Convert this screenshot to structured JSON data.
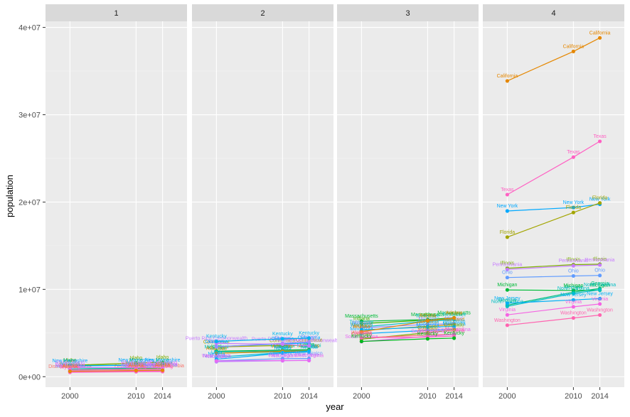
{
  "chart_data": {
    "type": "line",
    "facet_by": "group",
    "facets": [
      {
        "label": "1",
        "series": [
          {
            "name": "Delaware",
            "values": [
              783600,
              897934,
              935614
            ],
            "color": "#a3a500"
          },
          {
            "name": "District of Columbia",
            "values": [
              572059,
              601723,
              658893
            ],
            "color": "#f8766d"
          },
          {
            "name": "Idaho",
            "values": [
              1293953,
              1567582,
              1634464
            ],
            "color": "#7cae00"
          },
          {
            "name": "Maine",
            "values": [
              1274923,
              1328361,
              1330089
            ],
            "color": "#00ba38"
          },
          {
            "name": "Montana",
            "values": [
              902195,
              989415,
              1023579
            ],
            "color": "#00bfc4"
          },
          {
            "name": "New Hampshire",
            "values": [
              1235786,
              1316470,
              1326813
            ],
            "color": "#00a9ff"
          },
          {
            "name": "North Dakota",
            "values": [
              642200,
              672591,
              739482
            ],
            "color": "#619cff"
          },
          {
            "name": "Rhode Island",
            "values": [
              1048319,
              1052567,
              1055173
            ],
            "color": "#c77cff"
          },
          {
            "name": "South Dakota",
            "values": [
              754844,
              814180,
              853175
            ],
            "color": "#e76bf3"
          },
          {
            "name": "Vermont",
            "values": [
              608827,
              625741,
              626562
            ],
            "color": "#ff61c3"
          },
          {
            "name": "Wyoming",
            "values": [
              493782,
              563626,
              584153
            ],
            "color": "#ff62bc"
          },
          {
            "name": "Alaska",
            "values": [
              626932,
              710231,
              736732
            ],
            "color": "#e58700"
          }
        ]
      },
      {
        "label": "2",
        "series": [
          {
            "name": "Connecticut",
            "values": [
              3405565,
              3574097,
              3596677
            ],
            "color": "#a3a500"
          },
          {
            "name": "Iowa",
            "values": [
              2926324,
              3046355,
              3107126
            ],
            "color": "#00ba38"
          },
          {
            "name": "Kansas",
            "values": [
              2688418,
              2853118,
              2904021
            ],
            "color": "#00bf7d"
          },
          {
            "name": "Mississippi",
            "values": [
              2844658,
              2967297,
              2994079
            ],
            "color": "#00c0af"
          },
          {
            "name": "Arkansas",
            "values": [
              2673400,
              2915918,
              2966369
            ],
            "color": "#e58700"
          },
          {
            "name": "Utah",
            "values": [
              2233169,
              2763885,
              2942902
            ],
            "color": "#00bcd8"
          },
          {
            "name": "Nevada",
            "values": [
              1998257,
              2700551,
              2839099
            ],
            "color": "#00b0f6"
          },
          {
            "name": "New Mexico",
            "values": [
              1819046,
              2059179,
              2085572
            ],
            "color": "#619cff"
          },
          {
            "name": "Nebraska",
            "values": [
              1711263,
              1826341,
              1881503
            ],
            "color": "#b983ff"
          },
          {
            "name": "West Virginia",
            "values": [
              1808344,
              1852994,
              1850326
            ],
            "color": "#e76bf3"
          },
          {
            "name": "Oklahoma",
            "values": [
              3450654,
              3751351,
              3878051
            ],
            "color": "#00a9ff"
          },
          {
            "name": "Oregon",
            "values": [
              3421399,
              3831074,
              3970239
            ],
            "color": "#9590ff"
          },
          {
            "name": "Puerto Rico Commonwealth",
            "values": [
              3808610,
              3725789,
              3548397
            ],
            "color": "#c77cff"
          },
          {
            "name": "Kentucky",
            "values": [
              4041769,
              4339367,
              4413457
            ],
            "color": "#00b4f0"
          }
        ]
      },
      {
        "label": "3",
        "series": [
          {
            "name": "Massachusetts",
            "values": [
              6349097,
              6547629,
              6745408
            ],
            "color": "#00ba38"
          },
          {
            "name": "Indiana",
            "values": [
              6080485,
              6483802,
              6596855
            ],
            "color": "#39b600"
          },
          {
            "name": "Tennessee",
            "values": [
              5689283,
              6346105,
              6549352
            ],
            "color": "#00bfc4"
          },
          {
            "name": "Missouri",
            "values": [
              5595211,
              5988927,
              6063589
            ],
            "color": "#9590ff"
          },
          {
            "name": "Maryland",
            "values": [
              5296486,
              5773552,
              5976407
            ],
            "color": "#d89000"
          },
          {
            "name": "Wisconsin",
            "values": [
              5363675,
              5686986,
              5757564
            ],
            "color": "#00b0f6"
          },
          {
            "name": "Minnesota",
            "values": [
              4919479,
              5303925,
              5457173
            ],
            "color": "#00a9ff"
          },
          {
            "name": "Colorado",
            "values": [
              4301261,
              5029196,
              5355866
            ],
            "color": "#7cae00"
          },
          {
            "name": "Arizona",
            "values": [
              5130632,
              6392017,
              6731484
            ],
            "color": "#e58700"
          },
          {
            "name": "Alabama",
            "values": [
              4447100,
              4779736,
              4849377
            ],
            "color": "#f8766d"
          },
          {
            "name": "South Carolina",
            "values": [
              4012012,
              4625364,
              4832482
            ],
            "color": "#e76bf3"
          },
          {
            "name": "Louisiana",
            "values": [
              4468976,
              4533372,
              4649676
            ],
            "color": "#ff62bc"
          },
          {
            "name": "Kentucky",
            "values": [
              4041769,
              4339367,
              4413457
            ],
            "color": "#00b81f"
          }
        ]
      },
      {
        "label": "4",
        "series": [
          {
            "name": "California",
            "values": [
              33871648,
              37253956,
              38802500
            ],
            "color": "#e58700"
          },
          {
            "name": "Texas",
            "values": [
              20851820,
              25145561,
              26956958
            ],
            "color": "#ff61c3"
          },
          {
            "name": "New York",
            "values": [
              18976457,
              19378102,
              19746227
            ],
            "color": "#00a9ff"
          },
          {
            "name": "Florida",
            "values": [
              15982378,
              18801310,
              19893297
            ],
            "color": "#a3a500"
          },
          {
            "name": "Illinois",
            "values": [
              12419293,
              12830632,
              12880580
            ],
            "color": "#7cae00"
          },
          {
            "name": "Pennsylvania",
            "values": [
              12281054,
              12702379,
              12787209
            ],
            "color": "#c77cff"
          },
          {
            "name": "Ohio",
            "values": [
              11353140,
              11536504,
              11594163
            ],
            "color": "#619cff"
          },
          {
            "name": "Michigan",
            "values": [
              9938444,
              9883640,
              9909877
            ],
            "color": "#00ba38"
          },
          {
            "name": "Georgia",
            "values": [
              8186453,
              9687653,
              10097343
            ],
            "color": "#00bf7d"
          },
          {
            "name": "North Carolina",
            "values": [
              8049313,
              9535483,
              9943964
            ],
            "color": "#00bfc4"
          },
          {
            "name": "New Jersey",
            "values": [
              8414350,
              8791894,
              8938175
            ],
            "color": "#00b0f6"
          },
          {
            "name": "Virginia",
            "values": [
              7078515,
              8001024,
              8326289
            ],
            "color": "#f564e3"
          },
          {
            "name": "Washington",
            "values": [
              5894121,
              6724540,
              7061530
            ],
            "color": "#ff64b0"
          }
        ]
      }
    ],
    "x": [
      2000,
      2010,
      2014
    ],
    "x_ticks": [
      "2000",
      "2010",
      "2014"
    ],
    "y_ticks": [
      {
        "value": 0,
        "label": "0e+00"
      },
      {
        "value": 10000000,
        "label": "1e+07"
      },
      {
        "value": 20000000,
        "label": "2e+07"
      },
      {
        "value": 30000000,
        "label": "3e+07"
      },
      {
        "value": 40000000,
        "label": "4e+07"
      }
    ],
    "xlim": [
      1996.3,
      2017.7
    ],
    "ylim": [
      -1200000,
      40700000
    ],
    "xlabel": "year",
    "ylabel": "population",
    "grid": true,
    "legend": "none"
  }
}
